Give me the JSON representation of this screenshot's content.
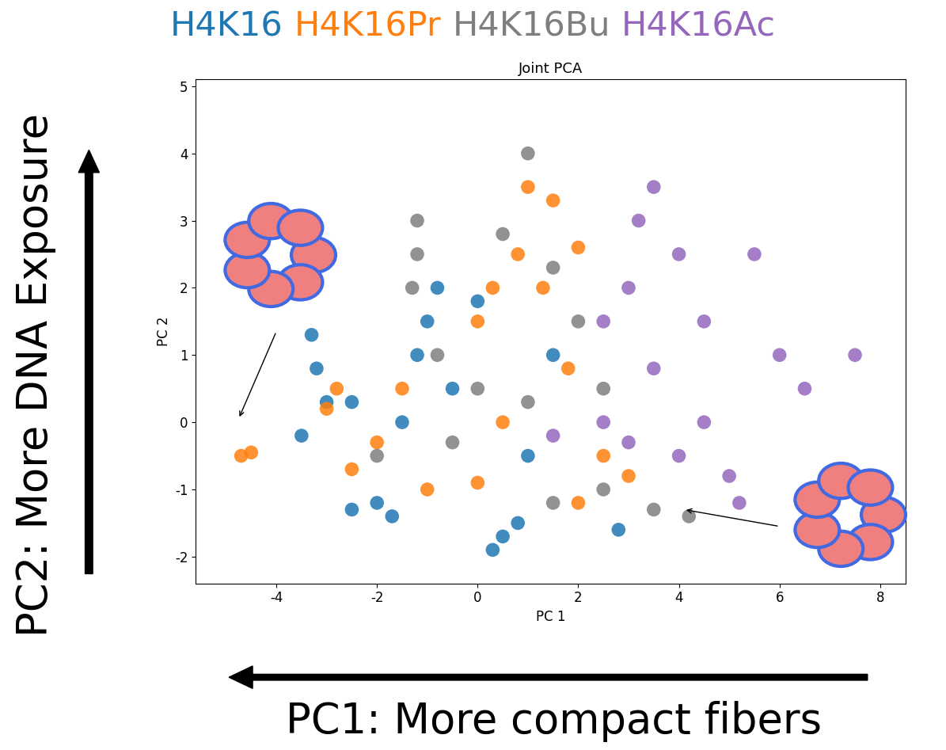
{
  "chart_data": {
    "type": "scatter",
    "title": "Joint PCA",
    "x_label": "PC 1",
    "y_label": "PC 2",
    "outer_y_label": "PC2: More DNA Exposure",
    "outer_x_label": "PC1: More compact fibers",
    "xlim": [
      -5.6,
      8.5
    ],
    "ylim": [
      -2.4,
      5.1
    ],
    "xticks": [
      -4,
      -2,
      0,
      2,
      4,
      6,
      8
    ],
    "yticks": [
      -2,
      -1,
      0,
      1,
      2,
      3,
      4,
      5
    ],
    "series": [
      {
        "name": "H4K16",
        "color": "#1f77b4",
        "marker": "o",
        "x": [
          -3.2,
          -3.3,
          -3.0,
          -3.5,
          -2.0,
          -2.5,
          -1.7,
          0.5,
          0.3,
          0.8,
          2.8,
          -1.0,
          -1.2,
          -0.5,
          -1.5,
          1.0,
          0.0,
          -2.5,
          -0.8,
          1.5
        ],
        "y": [
          0.8,
          1.3,
          0.3,
          -0.2,
          -1.2,
          -1.3,
          -1.4,
          -1.7,
          -1.9,
          -1.5,
          -1.6,
          1.5,
          1.0,
          0.5,
          0.0,
          -0.5,
          1.8,
          0.3,
          2.0,
          1.0
        ]
      },
      {
        "name": "H4K16Pr",
        "color": "#ff7f0e",
        "marker": "o",
        "x": [
          -4.7,
          -4.5,
          -3.0,
          -2.8,
          -2.5,
          -2.0,
          -1.0,
          0.0,
          0.0,
          0.3,
          0.8,
          1.5,
          1.0,
          2.0,
          1.3,
          2.0,
          3.0,
          0.5,
          -1.5,
          1.8,
          2.5
        ],
        "y": [
          -0.5,
          -0.45,
          0.2,
          0.5,
          -0.7,
          -0.3,
          -1.0,
          -0.9,
          1.5,
          2.0,
          2.5,
          3.3,
          3.5,
          2.6,
          2.0,
          -1.2,
          -0.8,
          0.0,
          0.5,
          0.8,
          -0.5
        ]
      },
      {
        "name": "H4K16Bu",
        "color": "#7f7f7f",
        "marker": "o",
        "x": [
          -1.2,
          -1.2,
          -1.3,
          0.5,
          1.0,
          1.5,
          2.0,
          0.0,
          -0.5,
          1.5,
          2.5,
          3.5,
          4.2,
          1.0,
          -0.8,
          2.5,
          -2.0
        ],
        "y": [
          3.0,
          2.5,
          2.0,
          2.8,
          4.0,
          2.3,
          1.5,
          0.5,
          -0.3,
          -1.2,
          -1.0,
          -1.3,
          -1.4,
          0.3,
          1.0,
          0.5,
          -0.5
        ]
      },
      {
        "name": "H4K16Ac",
        "color": "#9467bd",
        "marker": "o",
        "x": [
          3.5,
          3.2,
          4.0,
          3.0,
          4.5,
          3.5,
          4.5,
          5.0,
          5.2,
          2.5,
          1.5,
          6.0,
          6.5,
          7.5,
          4.0,
          3.0,
          5.5,
          2.5
        ],
        "y": [
          3.5,
          3.0,
          2.5,
          2.0,
          1.5,
          0.8,
          0.0,
          -0.8,
          -1.2,
          0.0,
          -0.2,
          1.0,
          0.5,
          1.0,
          -0.5,
          -0.3,
          2.5,
          1.5
        ]
      }
    ]
  }
}
